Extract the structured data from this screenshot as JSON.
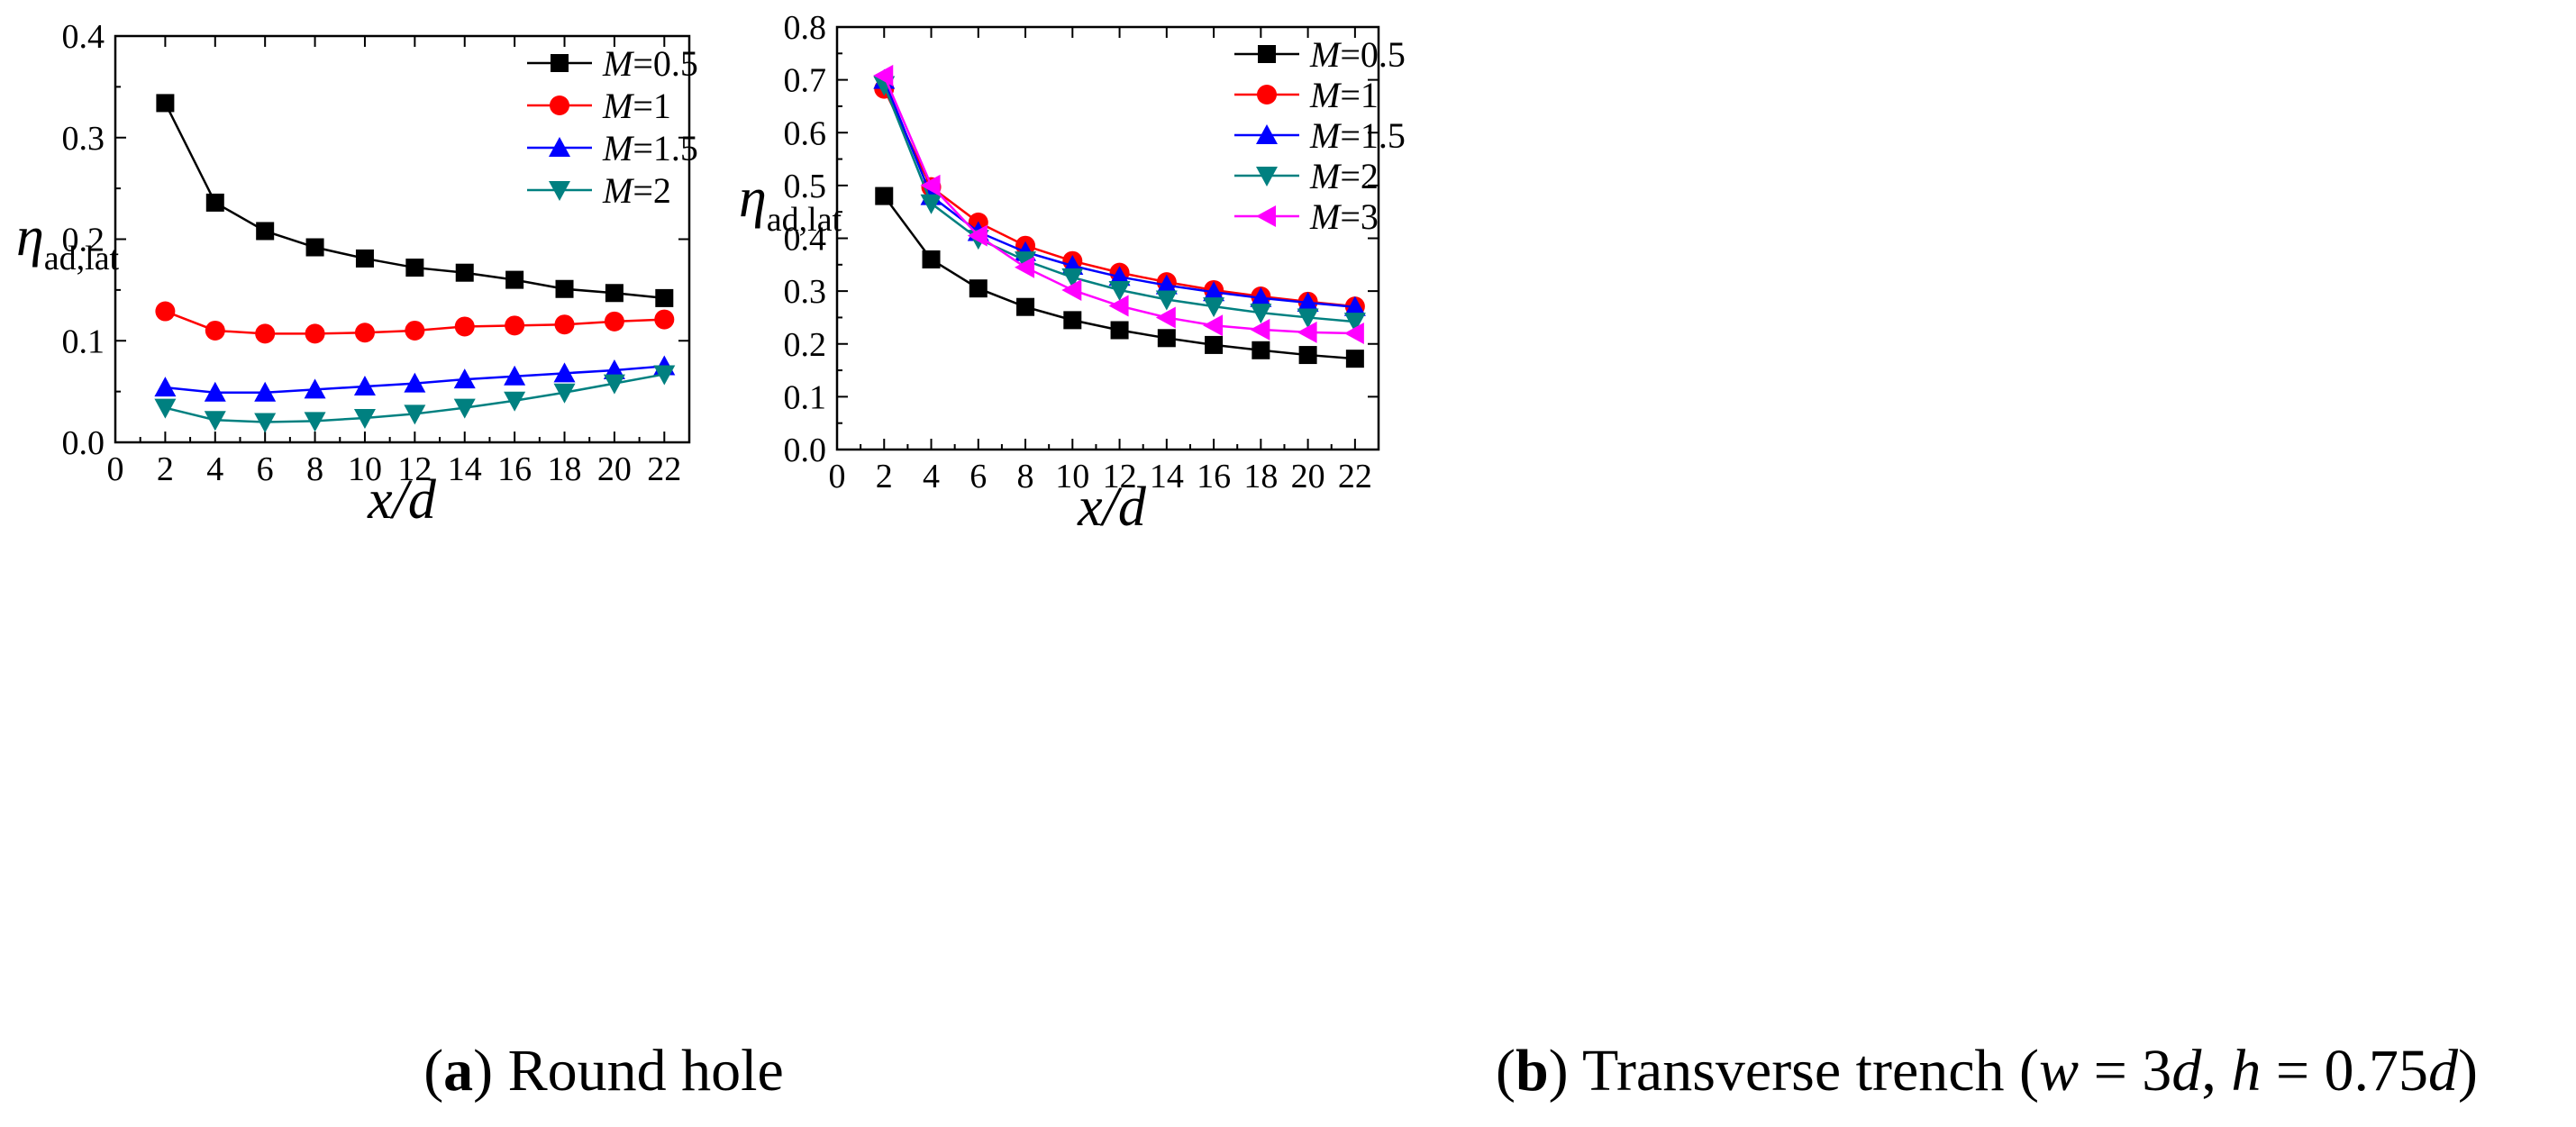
{
  "chart_data": [
    {
      "type": "line",
      "caption": {
        "paren_open": "(",
        "letter": "a",
        "paren_close": ")",
        "text": " Round hole"
      },
      "xlabel": "x/d",
      "ylabel": {
        "symbol": "η",
        "subscript": "ad,lat"
      },
      "xlim": [
        0,
        23
      ],
      "ylim": [
        0.0,
        0.4
      ],
      "xticks": [
        "0",
        "2",
        "4",
        "6",
        "8",
        "10",
        "12",
        "14",
        "16",
        "18",
        "20",
        "22"
      ],
      "xtick_values": [
        0,
        2,
        4,
        6,
        8,
        10,
        12,
        14,
        16,
        18,
        20,
        22
      ],
      "yticks": [
        "0.0",
        "0.1",
        "0.2",
        "0.3",
        "0.4"
      ],
      "ytick_values": [
        0.0,
        0.1,
        0.2,
        0.3,
        0.4
      ],
      "legend_position": "top-right",
      "x": [
        2,
        4,
        6,
        8,
        10,
        12,
        14,
        16,
        18,
        20,
        22
      ],
      "series": [
        {
          "label_var": "M",
          "label_val": "=0.5",
          "color": "#000000",
          "marker": "square",
          "values": [
            0.334,
            0.236,
            0.208,
            0.192,
            0.181,
            0.172,
            0.167,
            0.16,
            0.151,
            0.147,
            0.142
          ]
        },
        {
          "label_var": "M",
          "label_val": "=1",
          "color": "#ff0000",
          "marker": "circle",
          "values": [
            0.129,
            0.11,
            0.107,
            0.107,
            0.108,
            0.11,
            0.114,
            0.115,
            0.116,
            0.119,
            0.121
          ]
        },
        {
          "label_var": "M",
          "label_val": "=1.5",
          "color": "#0000ff",
          "marker": "triangle-up",
          "values": [
            0.054,
            0.049,
            0.049,
            0.052,
            0.055,
            0.058,
            0.062,
            0.065,
            0.068,
            0.071,
            0.075
          ]
        },
        {
          "label_var": "M",
          "label_val": "=2",
          "color": "#008080",
          "marker": "triangle-down",
          "values": [
            0.034,
            0.022,
            0.02,
            0.021,
            0.024,
            0.028,
            0.034,
            0.041,
            0.049,
            0.058,
            0.067
          ]
        }
      ]
    },
    {
      "type": "line",
      "caption": {
        "paren_open": "(",
        "letter": "b",
        "paren_close": ")",
        "text": " Transverse trench (",
        "w": "w",
        "eq1": " = 3",
        "d1": "d",
        "comma": ", ",
        "h": "h",
        "eq2": " = 0.75",
        "d2": "d",
        "close": ")"
      },
      "xlabel": "x/d",
      "ylabel": {
        "symbol": "η",
        "subscript": "ad,lat"
      },
      "xlim": [
        0,
        23
      ],
      "ylim": [
        0.0,
        0.8
      ],
      "xticks": [
        "0",
        "2",
        "4",
        "6",
        "8",
        "10",
        "12",
        "14",
        "16",
        "18",
        "20",
        "22"
      ],
      "xtick_values": [
        0,
        2,
        4,
        6,
        8,
        10,
        12,
        14,
        16,
        18,
        20,
        22
      ],
      "yticks": [
        "0.0",
        "0.1",
        "0.2",
        "0.3",
        "0.4",
        "0.5",
        "0.6",
        "0.7",
        "0.8"
      ],
      "ytick_values": [
        0.0,
        0.1,
        0.2,
        0.3,
        0.4,
        0.5,
        0.6,
        0.7,
        0.8
      ],
      "legend_position": "top-right",
      "x": [
        2,
        4,
        6,
        8,
        10,
        12,
        14,
        16,
        18,
        20,
        22
      ],
      "series": [
        {
          "label_var": "M",
          "label_val": "=0.5",
          "color": "#000000",
          "marker": "square",
          "values": [
            0.48,
            0.36,
            0.305,
            0.27,
            0.245,
            0.226,
            0.211,
            0.198,
            0.188,
            0.179,
            0.172
          ]
        },
        {
          "label_var": "M",
          "label_val": "=1",
          "color": "#ff0000",
          "marker": "circle",
          "values": [
            0.683,
            0.497,
            0.43,
            0.386,
            0.357,
            0.335,
            0.317,
            0.302,
            0.29,
            0.28,
            0.271
          ]
        },
        {
          "label_var": "M",
          "label_val": "=1.5",
          "color": "#0000ff",
          "marker": "triangle-up",
          "values": [
            0.7,
            0.48,
            0.412,
            0.374,
            0.348,
            0.327,
            0.311,
            0.298,
            0.287,
            0.278,
            0.27
          ]
        },
        {
          "label_var": "M",
          "label_val": "=2",
          "color": "#008080",
          "marker": "triangle-down",
          "values": [
            0.69,
            0.466,
            0.399,
            0.358,
            0.326,
            0.302,
            0.284,
            0.271,
            0.259,
            0.25,
            0.242
          ]
        },
        {
          "label_var": "M",
          "label_val": "=3",
          "color": "#ff00ff",
          "marker": "triangle-left",
          "values": [
            0.708,
            0.5,
            0.405,
            0.345,
            0.302,
            0.272,
            0.25,
            0.235,
            0.227,
            0.222,
            0.22
          ]
        }
      ]
    }
  ]
}
